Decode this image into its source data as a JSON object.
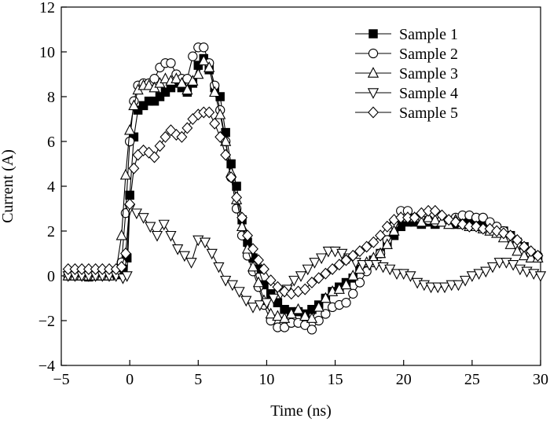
{
  "chart_data": {
    "type": "line",
    "title": "",
    "xlabel": "Time (ns)",
    "ylabel": "Current (A)",
    "xlim": [
      -5,
      30
    ],
    "ylim": [
      -4,
      12
    ],
    "xticks": [
      -5,
      0,
      5,
      10,
      15,
      20,
      25,
      30
    ],
    "yticks": [
      -4,
      -2,
      0,
      2,
      4,
      6,
      8,
      10,
      12
    ],
    "grid": false,
    "legend_position": "top-right",
    "series": [
      {
        "name": "Sample 1",
        "marker": "square-filled",
        "x": [
          -4.5,
          -4,
          -3.5,
          -3,
          -2.5,
          -2,
          -1.5,
          -1,
          -0.5,
          -0.2,
          0,
          0.3,
          0.6,
          1.0,
          1.4,
          1.8,
          2.2,
          2.6,
          3.0,
          3.4,
          3.8,
          4.2,
          4.6,
          5.0,
          5.4,
          5.8,
          6.2,
          6.6,
          7.0,
          7.4,
          7.8,
          8.2,
          8.6,
          9.0,
          9.4,
          9.8,
          10.3,
          10.8,
          11.3,
          11.8,
          12.3,
          12.8,
          13.3,
          13.8,
          14.3,
          14.8,
          15.3,
          15.8,
          16.3,
          16.8,
          17.3,
          17.8,
          18.3,
          18.8,
          19.3,
          19.8,
          20.3,
          20.8,
          21.3,
          21.8,
          22.3,
          22.8,
          23.3,
          23.8,
          24.3,
          24.8,
          25.3,
          25.8,
          26.3,
          26.8,
          27.3,
          27.8,
          28.3,
          28.8,
          29.3,
          29.8
        ],
        "y": [
          0.0,
          0.0,
          0.0,
          -0.05,
          0.0,
          0.0,
          0.0,
          0.05,
          0.3,
          0.8,
          3.6,
          6.2,
          7.4,
          7.6,
          7.8,
          7.8,
          8.0,
          8.2,
          8.4,
          8.6,
          8.4,
          8.2,
          8.6,
          9.4,
          9.7,
          9.2,
          8.4,
          8.0,
          6.4,
          5.0,
          4.0,
          2.5,
          1.5,
          0.8,
          0.3,
          -0.4,
          -0.8,
          -1.2,
          -1.5,
          -1.6,
          -1.6,
          -1.7,
          -1.5,
          -1.3,
          -1.0,
          -0.7,
          -0.5,
          -0.3,
          -0.1,
          0.3,
          0.5,
          0.7,
          1.0,
          1.4,
          1.8,
          2.2,
          2.4,
          2.4,
          2.3,
          2.4,
          2.3,
          2.4,
          2.4,
          2.3,
          2.5,
          2.4,
          2.3,
          2.3,
          2.2,
          2.1,
          2.0,
          1.8,
          1.5,
          1.3,
          1.0,
          0.8
        ]
      },
      {
        "name": "Sample 2",
        "marker": "circle-open",
        "x": [
          -4.5,
          -4,
          -3.5,
          -3,
          -2.5,
          -2,
          -1.5,
          -1,
          -0.6,
          -0.3,
          0,
          0.3,
          0.6,
          1.0,
          1.4,
          1.8,
          2.2,
          2.6,
          3.0,
          3.4,
          3.8,
          4.2,
          4.6,
          5.0,
          5.4,
          5.8,
          6.2,
          6.6,
          7.0,
          7.4,
          7.8,
          8.2,
          8.6,
          9.0,
          9.4,
          9.8,
          10.3,
          10.8,
          11.3,
          11.8,
          12.3,
          12.8,
          13.3,
          13.8,
          14.3,
          14.8,
          15.3,
          15.8,
          16.3,
          16.8,
          17.3,
          17.8,
          18.3,
          18.8,
          19.3,
          19.8,
          20.3,
          20.8,
          21.3,
          21.8,
          22.3,
          22.8,
          23.3,
          23.8,
          24.3,
          24.8,
          25.3,
          25.8,
          26.3,
          26.8,
          27.3,
          27.8,
          28.3,
          28.8,
          29.3,
          29.8
        ],
        "y": [
          0.0,
          0.0,
          0.0,
          0.0,
          0.0,
          0.0,
          0.0,
          0.1,
          0.6,
          2.8,
          6.0,
          7.8,
          8.5,
          8.6,
          8.6,
          8.8,
          9.3,
          9.5,
          9.5,
          9.0,
          8.8,
          8.8,
          9.8,
          10.2,
          10.2,
          9.5,
          8.5,
          7.4,
          6.0,
          4.4,
          3.0,
          1.8,
          0.9,
          0.2,
          -0.5,
          -1.3,
          -2.0,
          -2.3,
          -2.3,
          -2.1,
          -2.1,
          -2.2,
          -2.4,
          -2.0,
          -1.7,
          -1.4,
          -1.3,
          -1.2,
          -0.8,
          -0.3,
          0.2,
          0.6,
          1.0,
          1.6,
          2.3,
          2.9,
          2.9,
          2.6,
          2.5,
          2.5,
          2.4,
          2.5,
          2.4,
          2.6,
          2.7,
          2.7,
          2.6,
          2.6,
          2.4,
          2.2,
          2.0,
          1.7,
          1.4,
          1.1,
          1.0,
          0.9
        ]
      },
      {
        "name": "Sample 3",
        "marker": "triangle-up-open",
        "x": [
          -4.5,
          -4,
          -3.5,
          -3,
          -2.5,
          -2,
          -1.5,
          -1,
          -0.6,
          -0.3,
          0,
          0.3,
          0.6,
          1.0,
          1.4,
          1.8,
          2.2,
          2.6,
          3.0,
          3.4,
          3.8,
          4.2,
          4.6,
          5.0,
          5.4,
          5.8,
          6.2,
          6.6,
          7.0,
          7.4,
          7.8,
          8.2,
          8.6,
          9.0,
          9.4,
          9.8,
          10.3,
          10.8,
          11.3,
          11.8,
          12.3,
          12.8,
          13.3,
          13.8,
          14.3,
          14.8,
          15.3,
          15.8,
          16.3,
          16.8,
          17.3,
          17.8,
          18.3,
          18.8,
          19.3,
          19.8,
          20.3,
          20.8,
          21.3,
          21.8,
          22.3,
          22.8,
          23.3,
          23.8,
          24.3,
          24.8,
          25.3,
          25.8,
          26.3,
          26.8,
          27.3,
          27.8,
          28.3,
          28.8,
          29.3,
          29.8
        ],
        "y": [
          0.0,
          0.0,
          0.0,
          0.0,
          0.0,
          0.0,
          0.0,
          0.2,
          1.8,
          4.5,
          6.5,
          7.6,
          8.3,
          8.5,
          8.5,
          8.4,
          8.6,
          8.8,
          8.7,
          8.8,
          8.6,
          8.3,
          8.7,
          9.0,
          9.6,
          9.3,
          8.2,
          7.2,
          6.0,
          4.6,
          3.4,
          2.2,
          1.2,
          0.4,
          -0.3,
          -1.1,
          -1.7,
          -1.8,
          -1.9,
          -1.7,
          -1.5,
          -1.8,
          -1.9,
          -1.4,
          -1.0,
          -0.7,
          -0.6,
          -0.4,
          0.0,
          0.3,
          0.6,
          0.8,
          1.0,
          1.4,
          2.0,
          2.6,
          2.6,
          2.6,
          2.4,
          2.6,
          2.5,
          2.4,
          2.3,
          2.5,
          2.3,
          2.2,
          2.2,
          2.1,
          2.0,
          1.9,
          1.7,
          1.4,
          1.1,
          0.9,
          0.8,
          0.8
        ]
      },
      {
        "name": "Sample 4",
        "marker": "triangle-down-open",
        "x": [
          -4.5,
          -4,
          -3.5,
          -3,
          -2.5,
          -2,
          -1.5,
          -1,
          -0.5,
          -0.2,
          0.0,
          0.5,
          1.0,
          1.5,
          2.0,
          2.5,
          3.0,
          3.5,
          4.0,
          4.5,
          5.0,
          5.5,
          6.0,
          6.5,
          7.0,
          7.5,
          8.0,
          8.5,
          9.0,
          9.5,
          10.0,
          10.5,
          11.0,
          11.5,
          12.0,
          12.5,
          13.0,
          13.5,
          14.0,
          14.5,
          15.0,
          15.5,
          16.0,
          16.5,
          17.0,
          17.5,
          18.0,
          18.5,
          19.0,
          19.5,
          20.0,
          20.5,
          21.0,
          21.5,
          22.0,
          22.5,
          23.0,
          23.5,
          24.0,
          24.5,
          25.0,
          25.5,
          26.0,
          26.5,
          27.0,
          27.5,
          28.0,
          28.5,
          29.0,
          29.5,
          30.0
        ],
        "y": [
          0.0,
          0.0,
          0.0,
          0.0,
          0.0,
          0.0,
          0.0,
          0.0,
          -0.1,
          0.0,
          3.0,
          2.8,
          2.6,
          2.2,
          1.8,
          2.3,
          1.8,
          1.2,
          0.9,
          0.6,
          1.6,
          1.5,
          1.0,
          0.4,
          -0.2,
          -0.4,
          -0.7,
          -1.1,
          -1.4,
          -1.3,
          -1.2,
          -1.0,
          -0.8,
          -0.6,
          -0.2,
          0.0,
          0.3,
          0.6,
          0.8,
          1.1,
          1.1,
          1.0,
          0.8,
          0.6,
          0.5,
          0.5,
          0.5,
          0.4,
          0.3,
          0.1,
          0.1,
          0.0,
          -0.3,
          -0.4,
          -0.5,
          -0.5,
          -0.5,
          -0.4,
          -0.4,
          -0.2,
          0.0,
          0.1,
          0.2,
          0.4,
          0.6,
          0.6,
          0.5,
          0.3,
          0.2,
          0.1,
          0.0
        ]
      },
      {
        "name": "Sample 5",
        "marker": "diamond-open",
        "x": [
          -4.5,
          -4,
          -3.5,
          -3,
          -2.5,
          -2,
          -1.5,
          -1,
          -0.6,
          -0.3,
          0,
          0.3,
          0.6,
          1.0,
          1.4,
          1.8,
          2.2,
          2.6,
          3.0,
          3.4,
          3.8,
          4.2,
          4.6,
          5.0,
          5.4,
          5.8,
          6.2,
          6.6,
          7.0,
          7.4,
          7.8,
          8.2,
          8.6,
          9.0,
          9.4,
          9.8,
          10.3,
          10.8,
          11.3,
          11.8,
          12.3,
          12.8,
          13.3,
          13.8,
          14.3,
          14.8,
          15.3,
          15.8,
          16.3,
          16.8,
          17.3,
          17.8,
          18.3,
          18.8,
          19.3,
          19.8,
          20.3,
          20.8,
          21.3,
          21.8,
          22.3,
          22.8,
          23.3,
          23.8,
          24.3,
          24.8,
          25.3,
          25.8,
          26.3,
          26.8,
          27.3,
          27.8,
          28.3,
          28.8,
          29.3,
          29.8
        ],
        "y": [
          0.3,
          0.3,
          0.3,
          0.3,
          0.3,
          0.3,
          0.3,
          0.3,
          0.4,
          1.0,
          3.2,
          4.8,
          5.4,
          5.6,
          5.5,
          5.3,
          5.8,
          6.2,
          6.5,
          6.3,
          6.2,
          6.6,
          7.0,
          7.2,
          7.3,
          7.3,
          6.8,
          6.2,
          5.4,
          4.4,
          3.5,
          2.6,
          1.8,
          1.2,
          0.7,
          0.3,
          -0.2,
          -0.5,
          -0.7,
          -0.8,
          -0.7,
          -0.6,
          -0.3,
          -0.1,
          0.1,
          0.3,
          0.5,
          0.7,
          0.9,
          1.1,
          1.3,
          1.5,
          1.8,
          2.2,
          2.5,
          2.6,
          2.6,
          2.6,
          2.8,
          2.9,
          2.9,
          2.7,
          2.5,
          2.4,
          2.3,
          2.2,
          2.2,
          2.1,
          2.1,
          2.0,
          1.9,
          1.8,
          1.6,
          1.3,
          1.1,
          0.9
        ]
      }
    ]
  }
}
